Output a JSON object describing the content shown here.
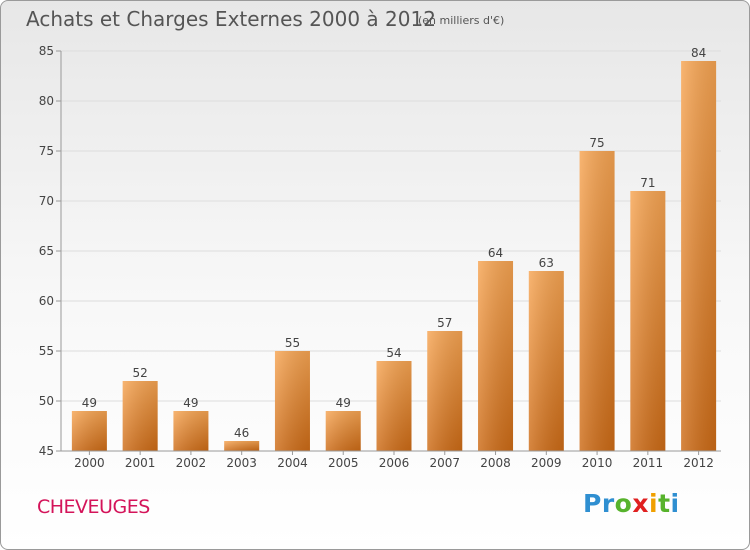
{
  "header": {
    "title": "Achats et Charges Externes 2000 à 2012",
    "subtitle": "(en milliers d'€)"
  },
  "footer": {
    "commune": "CHEVEUGES",
    "logo": [
      {
        "ch": "P",
        "color": "#2f8fd1"
      },
      {
        "ch": "r",
        "color": "#2f8fd1"
      },
      {
        "ch": "o",
        "color": "#57b32c"
      },
      {
        "ch": "x",
        "color": "#e02020"
      },
      {
        "ch": "i",
        "color": "#f0a000"
      },
      {
        "ch": "t",
        "color": "#57b32c"
      },
      {
        "ch": "i",
        "color": "#2f8fd1"
      }
    ]
  },
  "chart_data": {
    "type": "bar",
    "title": "Achats et Charges Externes 2000 à 2012",
    "subtitle": "(en milliers d'€)",
    "categories": [
      "2000",
      "2001",
      "2002",
      "2003",
      "2004",
      "2005",
      "2006",
      "2007",
      "2008",
      "2009",
      "2010",
      "2011",
      "2012"
    ],
    "values": [
      49,
      52,
      49,
      46,
      55,
      49,
      54,
      57,
      64,
      63,
      75,
      71,
      84
    ],
    "ylim": [
      45,
      85
    ],
    "yticks": [
      45,
      50,
      55,
      60,
      65,
      70,
      75,
      80,
      85
    ],
    "grid": true,
    "colors": {
      "bar_top": "#f7a553",
      "bar_bottom": "#cd6b16",
      "grid": "#dddddd",
      "axis": "#999999"
    }
  }
}
